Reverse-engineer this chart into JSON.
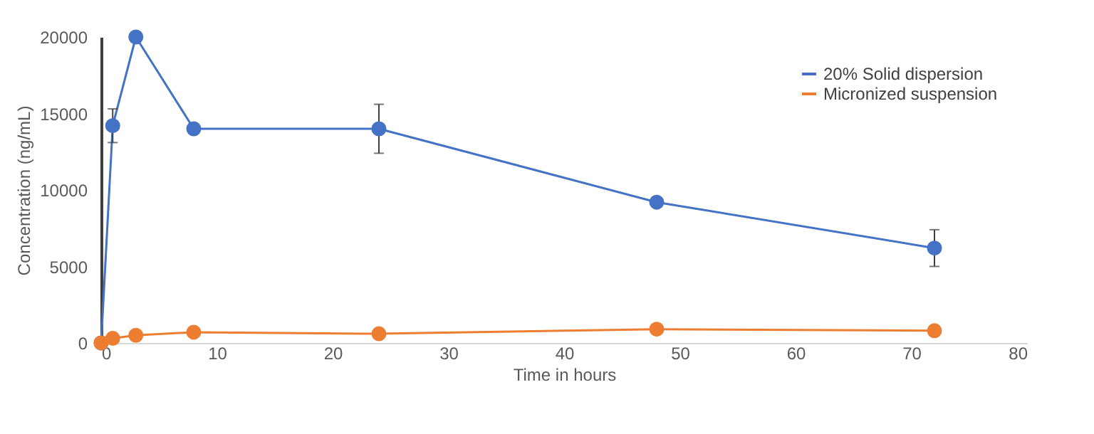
{
  "chart_data": {
    "type": "line",
    "xlabel": "Time in hours",
    "ylabel": "Concentration (ng/mL)",
    "x": [
      0,
      1,
      3,
      8,
      24,
      48,
      72
    ],
    "series": [
      {
        "name": "20% Solid dispersion",
        "color": "#4472c4",
        "values": [
          0,
          14200,
          20000,
          14000,
          14000,
          9200,
          6200
        ],
        "errors": [
          null,
          [
            13100,
            15300
          ],
          null,
          null,
          [
            12400,
            15600
          ],
          null,
          [
            5000,
            7400
          ]
        ]
      },
      {
        "name": "Micronized suspension",
        "color": "#ed7d31",
        "values": [
          0,
          300,
          500,
          700,
          600,
          900,
          800
        ]
      }
    ],
    "xlim": [
      0,
      80
    ],
    "xticks": [
      0,
      10,
      20,
      30,
      40,
      50,
      60,
      70,
      80
    ],
    "ylim": [
      0,
      20000
    ],
    "yticks": [
      0,
      5000,
      10000,
      15000,
      20000
    ],
    "grid": false,
    "legend": "top right",
    "marker": "circle",
    "line_style": "solid"
  }
}
